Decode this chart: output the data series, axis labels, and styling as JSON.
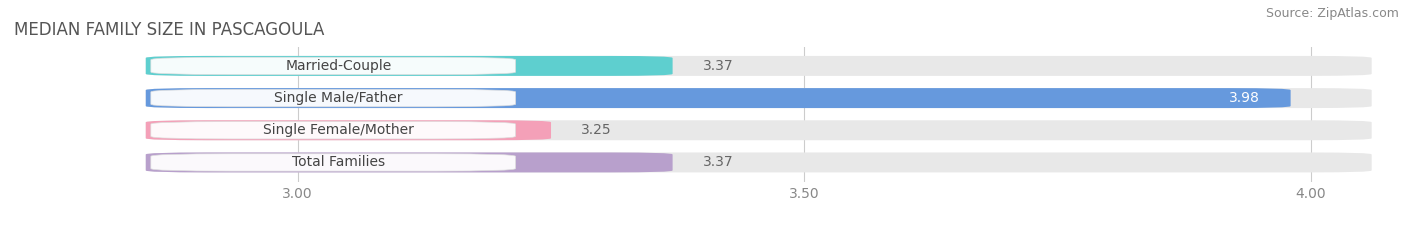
{
  "title": "MEDIAN FAMILY SIZE IN PASCAGOULA",
  "source": "Source: ZipAtlas.com",
  "categories": [
    "Married-Couple",
    "Single Male/Father",
    "Single Female/Mother",
    "Total Families"
  ],
  "values": [
    3.37,
    3.98,
    3.25,
    3.37
  ],
  "bar_colors": [
    "#5ecfcf",
    "#6699dd",
    "#f4a0b8",
    "#b8a0cc"
  ],
  "bar_bg_color": "#e8e8e8",
  "xlim_left": 2.72,
  "xlim_right": 4.08,
  "x_axis_start": 2.85,
  "xticks": [
    3.0,
    3.5,
    4.0
  ],
  "xtick_labels": [
    "3.00",
    "3.50",
    "4.00"
  ],
  "label_color_inside": "#ffffff",
  "label_color_outside": "#666666",
  "title_fontsize": 12,
  "source_fontsize": 9,
  "tick_fontsize": 10,
  "bar_label_fontsize": 10,
  "category_fontsize": 10,
  "bar_height": 0.62,
  "background_color": "#ffffff",
  "grid_color": "#cccccc"
}
